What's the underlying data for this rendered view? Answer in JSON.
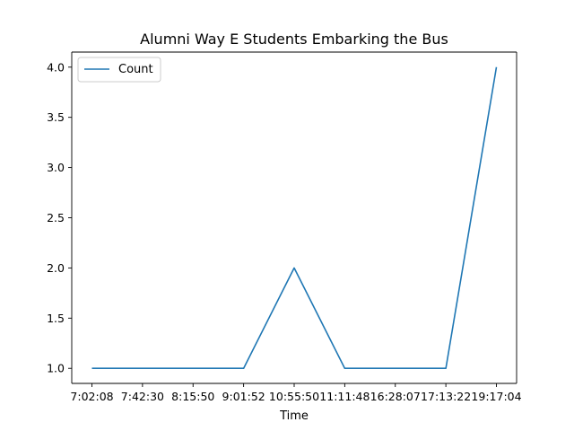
{
  "chart_data": {
    "type": "line",
    "title": "Alumni Way E Students Embarking the Bus",
    "xlabel": "Time",
    "ylabel": "",
    "categories": [
      "7:02:08",
      "7:42:30",
      "8:15:50",
      "9:01:52",
      "10:55:50",
      "11:11:48",
      "16:28:07",
      "17:13:22",
      "19:17:04"
    ],
    "series": [
      {
        "name": "Count",
        "values": [
          1,
          1,
          1,
          1,
          2,
          1,
          1,
          1,
          4
        ],
        "color": "#1f77b4"
      }
    ],
    "yticks": [
      "1.0",
      "1.5",
      "2.0",
      "2.5",
      "3.0",
      "3.5",
      "4.0"
    ],
    "ylim": [
      0.85,
      4.15
    ],
    "grid": false,
    "legend": "top-left"
  }
}
